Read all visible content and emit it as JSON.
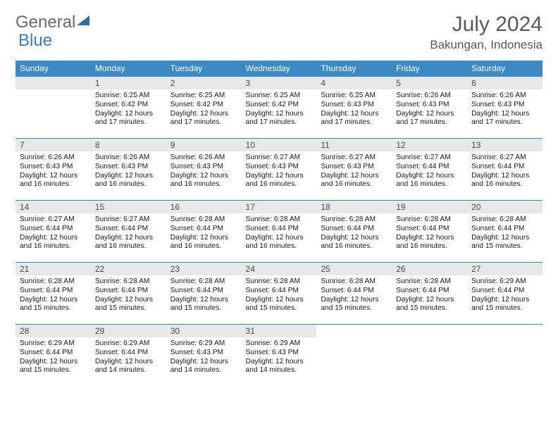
{
  "logo": {
    "word1": "General",
    "word2": "Blue"
  },
  "title": "July 2024",
  "location": "Bakungan, Indonesia",
  "colors": {
    "header_bg": "#3b8ac4",
    "header_fg": "#ffffff",
    "daynum_bg": "#e8e8e8",
    "row_divider": "#3b8ac4",
    "body_text": "#1a1a1a",
    "title_text": "#5a5a5a",
    "logo_gray": "#6b6b6b",
    "logo_blue": "#3b7db8"
  },
  "typography": {
    "title_fontsize": 30,
    "location_fontsize": 17,
    "header_fontsize": 12,
    "daynum_fontsize": 12,
    "body_fontsize": 10.2
  },
  "layout": {
    "columns": 7,
    "rows": 5,
    "start_weekday": 1
  },
  "weekdays": [
    "Sunday",
    "Monday",
    "Tuesday",
    "Wednesday",
    "Thursday",
    "Friday",
    "Saturday"
  ],
  "days": [
    {
      "n": 1,
      "sunrise": "6:25 AM",
      "sunset": "6:42 PM",
      "daylight": "12 hours and 17 minutes."
    },
    {
      "n": 2,
      "sunrise": "6:25 AM",
      "sunset": "6:42 PM",
      "daylight": "12 hours and 17 minutes."
    },
    {
      "n": 3,
      "sunrise": "6:25 AM",
      "sunset": "6:42 PM",
      "daylight": "12 hours and 17 minutes."
    },
    {
      "n": 4,
      "sunrise": "6:25 AM",
      "sunset": "6:43 PM",
      "daylight": "12 hours and 17 minutes."
    },
    {
      "n": 5,
      "sunrise": "6:26 AM",
      "sunset": "6:43 PM",
      "daylight": "12 hours and 17 minutes."
    },
    {
      "n": 6,
      "sunrise": "6:26 AM",
      "sunset": "6:43 PM",
      "daylight": "12 hours and 17 minutes."
    },
    {
      "n": 7,
      "sunrise": "6:26 AM",
      "sunset": "6:43 PM",
      "daylight": "12 hours and 16 minutes."
    },
    {
      "n": 8,
      "sunrise": "6:26 AM",
      "sunset": "6:43 PM",
      "daylight": "12 hours and 16 minutes."
    },
    {
      "n": 9,
      "sunrise": "6:26 AM",
      "sunset": "6:43 PM",
      "daylight": "12 hours and 16 minutes."
    },
    {
      "n": 10,
      "sunrise": "6:27 AM",
      "sunset": "6:43 PM",
      "daylight": "12 hours and 16 minutes."
    },
    {
      "n": 11,
      "sunrise": "6:27 AM",
      "sunset": "6:43 PM",
      "daylight": "12 hours and 16 minutes."
    },
    {
      "n": 12,
      "sunrise": "6:27 AM",
      "sunset": "6:44 PM",
      "daylight": "12 hours and 16 minutes."
    },
    {
      "n": 13,
      "sunrise": "6:27 AM",
      "sunset": "6:44 PM",
      "daylight": "12 hours and 16 minutes."
    },
    {
      "n": 14,
      "sunrise": "6:27 AM",
      "sunset": "6:44 PM",
      "daylight": "12 hours and 16 minutes."
    },
    {
      "n": 15,
      "sunrise": "6:27 AM",
      "sunset": "6:44 PM",
      "daylight": "12 hours and 16 minutes."
    },
    {
      "n": 16,
      "sunrise": "6:28 AM",
      "sunset": "6:44 PM",
      "daylight": "12 hours and 16 minutes."
    },
    {
      "n": 17,
      "sunrise": "6:28 AM",
      "sunset": "6:44 PM",
      "daylight": "12 hours and 16 minutes."
    },
    {
      "n": 18,
      "sunrise": "6:28 AM",
      "sunset": "6:44 PM",
      "daylight": "12 hours and 16 minutes."
    },
    {
      "n": 19,
      "sunrise": "6:28 AM",
      "sunset": "6:44 PM",
      "daylight": "12 hours and 16 minutes."
    },
    {
      "n": 20,
      "sunrise": "6:28 AM",
      "sunset": "6:44 PM",
      "daylight": "12 hours and 15 minutes."
    },
    {
      "n": 21,
      "sunrise": "6:28 AM",
      "sunset": "6:44 PM",
      "daylight": "12 hours and 15 minutes."
    },
    {
      "n": 22,
      "sunrise": "6:28 AM",
      "sunset": "6:44 PM",
      "daylight": "12 hours and 15 minutes."
    },
    {
      "n": 23,
      "sunrise": "6:28 AM",
      "sunset": "6:44 PM",
      "daylight": "12 hours and 15 minutes."
    },
    {
      "n": 24,
      "sunrise": "6:28 AM",
      "sunset": "6:44 PM",
      "daylight": "12 hours and 15 minutes."
    },
    {
      "n": 25,
      "sunrise": "6:28 AM",
      "sunset": "6:44 PM",
      "daylight": "12 hours and 15 minutes."
    },
    {
      "n": 26,
      "sunrise": "6:28 AM",
      "sunset": "6:44 PM",
      "daylight": "12 hours and 15 minutes."
    },
    {
      "n": 27,
      "sunrise": "6:29 AM",
      "sunset": "6:44 PM",
      "daylight": "12 hours and 15 minutes."
    },
    {
      "n": 28,
      "sunrise": "6:29 AM",
      "sunset": "6:44 PM",
      "daylight": "12 hours and 15 minutes."
    },
    {
      "n": 29,
      "sunrise": "6:29 AM",
      "sunset": "6:44 PM",
      "daylight": "12 hours and 14 minutes."
    },
    {
      "n": 30,
      "sunrise": "6:29 AM",
      "sunset": "6:43 PM",
      "daylight": "12 hours and 14 minutes."
    },
    {
      "n": 31,
      "sunrise": "6:29 AM",
      "sunset": "6:43 PM",
      "daylight": "12 hours and 14 minutes."
    }
  ],
  "labels": {
    "sunrise_prefix": "Sunrise: ",
    "sunset_prefix": "Sunset: ",
    "daylight_prefix": "Daylight: "
  }
}
